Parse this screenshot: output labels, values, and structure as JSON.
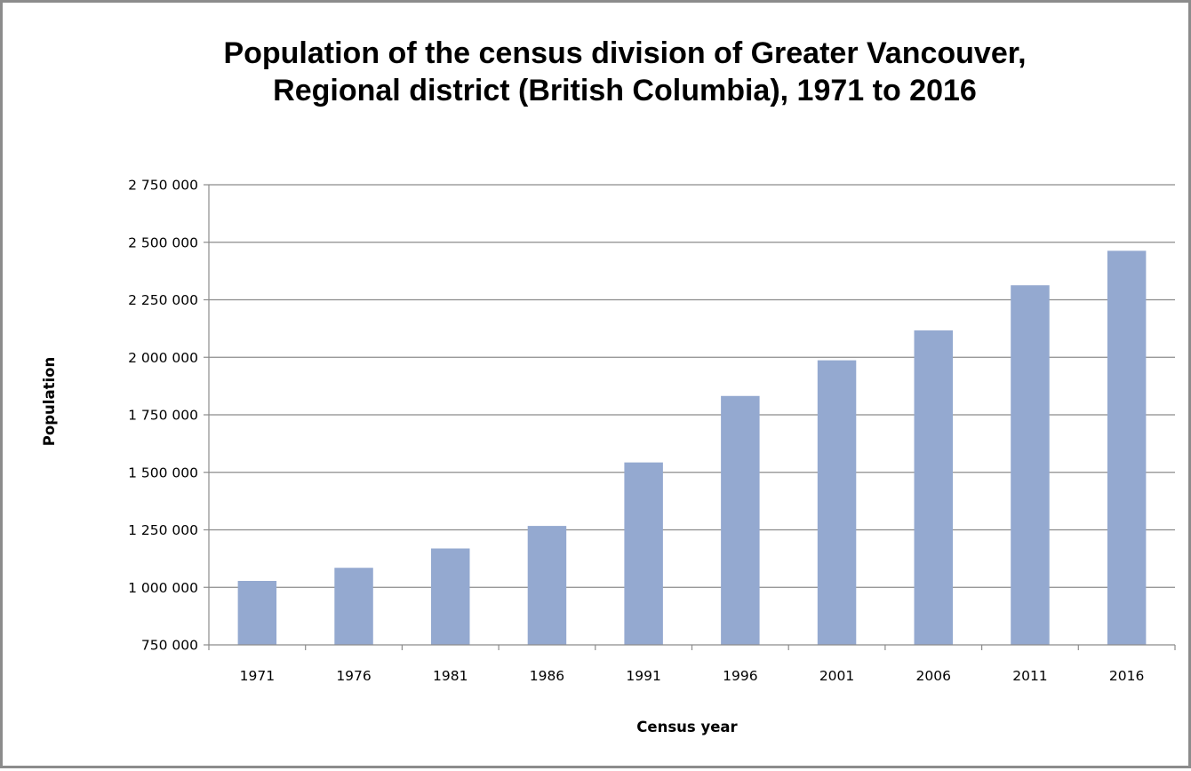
{
  "chart_data": {
    "type": "bar",
    "title_lines": [
      "Population of the census division of Greater Vancouver,",
      "Regional district (British Columbia), 1971 to 2016"
    ],
    "xlabel": "Census year",
    "ylabel": "Population",
    "categories": [
      "1971",
      "1976",
      "1981",
      "1986",
      "1991",
      "1996",
      "2001",
      "2006",
      "2011",
      "2016"
    ],
    "values": [
      1028000,
      1085000,
      1169000,
      1267000,
      1543000,
      1832000,
      1987000,
      2117000,
      2313000,
      2463000
    ],
    "ylim": [
      750000,
      2750000
    ],
    "yticks": [
      750000,
      1000000,
      1250000,
      1500000,
      1750000,
      2000000,
      2250000,
      2500000,
      2750000
    ],
    "ytick_labels": [
      "750 000",
      "1 000 000",
      "1 250 000",
      "1 500 000",
      "1 750 000",
      "2 000 000",
      "2 250 000",
      "2 500 000",
      "2 750 000"
    ],
    "grid": true,
    "legend": "none",
    "bar_color": "#94a9d0",
    "gridline_color": "#8c8c8c"
  }
}
